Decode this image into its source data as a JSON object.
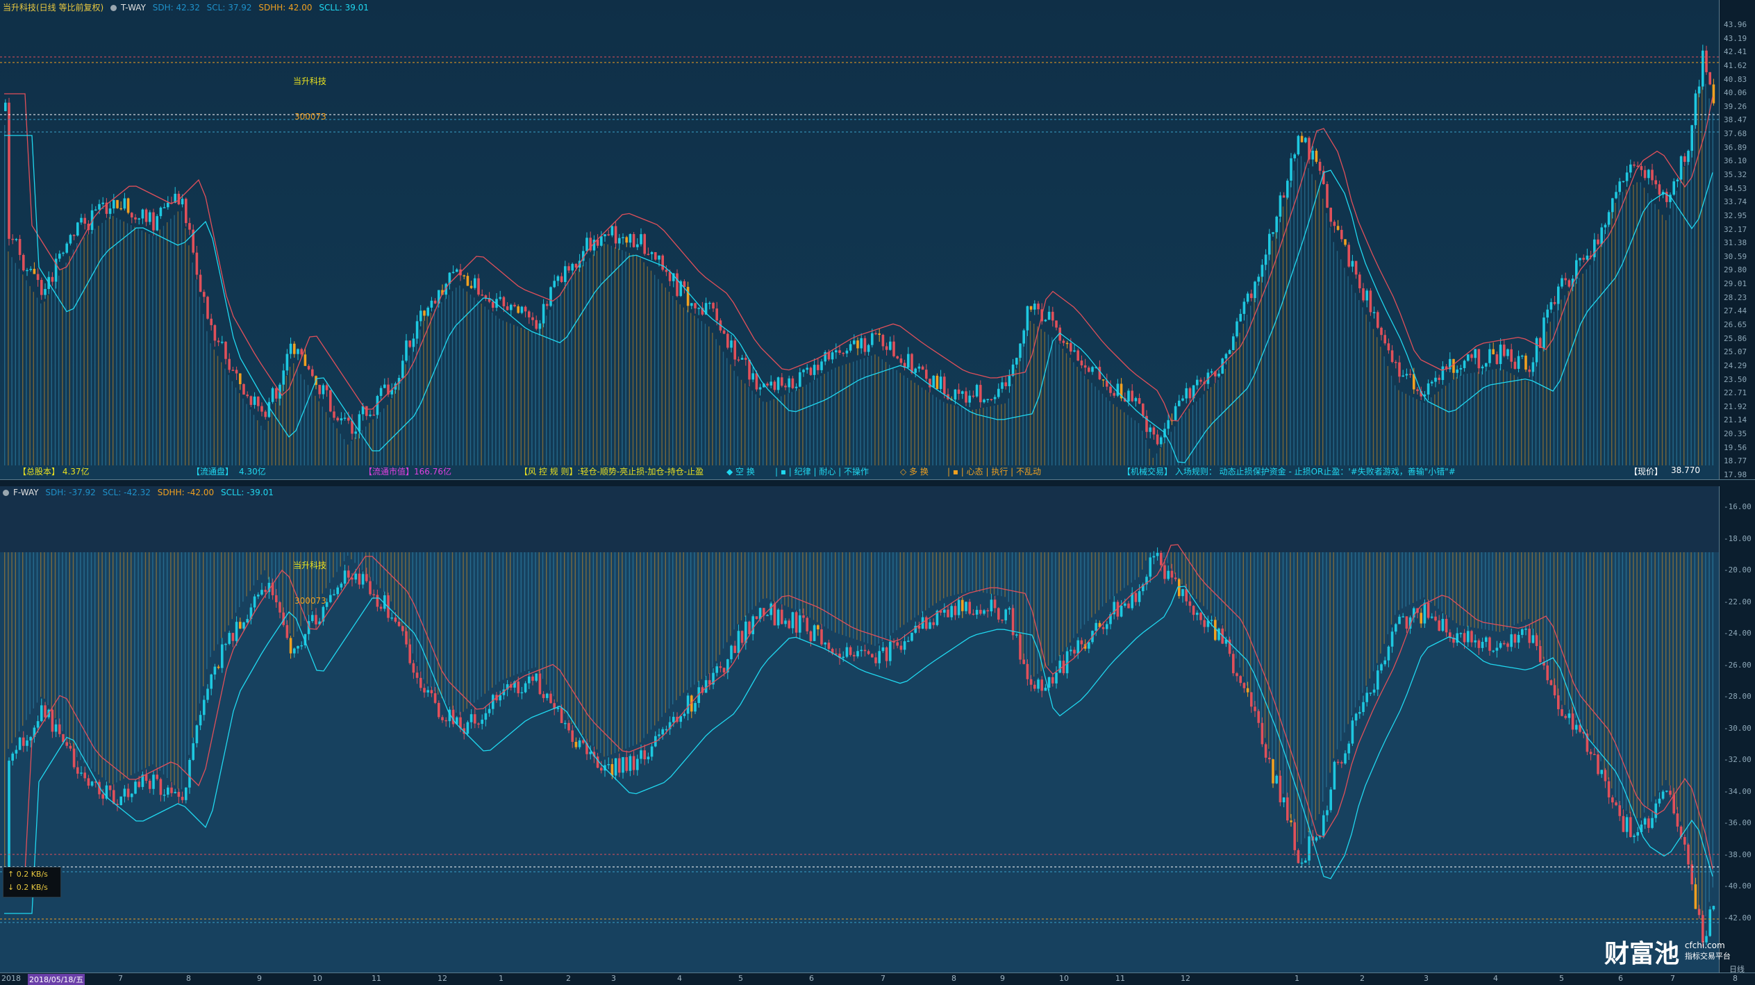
{
  "top": {
    "title": "当升科技(日线 等比前复权)",
    "indicator": "T-WAY",
    "sdh": "SDH: 42.32",
    "scl": "SCL: 37.92",
    "sdhh": "SDHH: 42.00",
    "scll": "SCLL: 39.01",
    "stock_name": "当升科技",
    "stock_code": "300073",
    "axis_ticks": [
      "43.96",
      "43.19",
      "42.41",
      "41.62",
      "40.83",
      "40.06",
      "39.26",
      "38.47",
      "37.68",
      "36.89",
      "36.10",
      "35.32",
      "34.53",
      "33.74",
      "32.95",
      "32.17",
      "31.38",
      "30.59",
      "29.80",
      "29.01",
      "28.23",
      "27.44",
      "26.65",
      "25.86",
      "25.07",
      "24.29",
      "23.50",
      "22.71",
      "21.92",
      "21.14",
      "20.35",
      "19.56",
      "18.77",
      "17.98"
    ]
  },
  "infobar": {
    "total_equity": "【总股本】 4.37亿",
    "float_shares_label": "【流通盘】",
    "float_shares_value": "4.30亿",
    "float_mktcap_label": "【流通市值】",
    "float_mktcap_value": "166.76亿",
    "risk_rule": "【风 控 规 则】:轻仓-顺势-亮止损-加仓-持仓-止盈",
    "short_label": "◆ 空 换",
    "short_items": "| ▪ | 纪律 | 耐心 | 不操作",
    "long_label": "◇ 多 换",
    "long_items": "| ▪ | 心态 | 执行 | 不乱动",
    "mech_trade": "【机械交易】 入场规则： 动态止损保护资金 - 止损OR止盈：'#失败者游戏，善输\"小错\"#",
    "price_label": "【现价】",
    "price_value": "38.770"
  },
  "bottom": {
    "indicator": "F-WAY",
    "sdh": "SDH: -37.92",
    "scl": "SCL: -42.32",
    "sdhh": "SDHH: -42.00",
    "scll": "SCLL: -39.01",
    "stock_name": "当升科技",
    "stock_code": "300073",
    "axis_ticks": [
      "-16.00",
      "-18.00",
      "-20.00",
      "-22.00",
      "-24.00",
      "-26.00",
      "-28.00",
      "-30.00",
      "-32.00",
      "-34.00",
      "-36.00",
      "-38.00",
      "-40.00",
      "-42.00"
    ]
  },
  "network": {
    "up": "↑ 0.2 KB/s",
    "down": "↓ 0.2 KB/s"
  },
  "dates": [
    "2018",
    "2018/05/18/五",
    "7",
    "8",
    "9",
    "10",
    "11",
    "12",
    "1",
    "2",
    "3",
    "4",
    "5",
    "6",
    "7",
    "8",
    "9",
    "10",
    "11",
    "12",
    "1",
    "2",
    "3",
    "4",
    "5",
    "6",
    "7",
    "8"
  ],
  "period_label": "日线",
  "logo": {
    "name": "财富池",
    "domain": "cfchi.com",
    "tagline": "指标交易平台"
  },
  "colors": {
    "up": "#1ec8e0",
    "down": "#e0505a",
    "orange": "#f0a020",
    "yellow": "#e8e020",
    "magenta": "#e040e0",
    "cyan": "#20d8f0"
  }
}
